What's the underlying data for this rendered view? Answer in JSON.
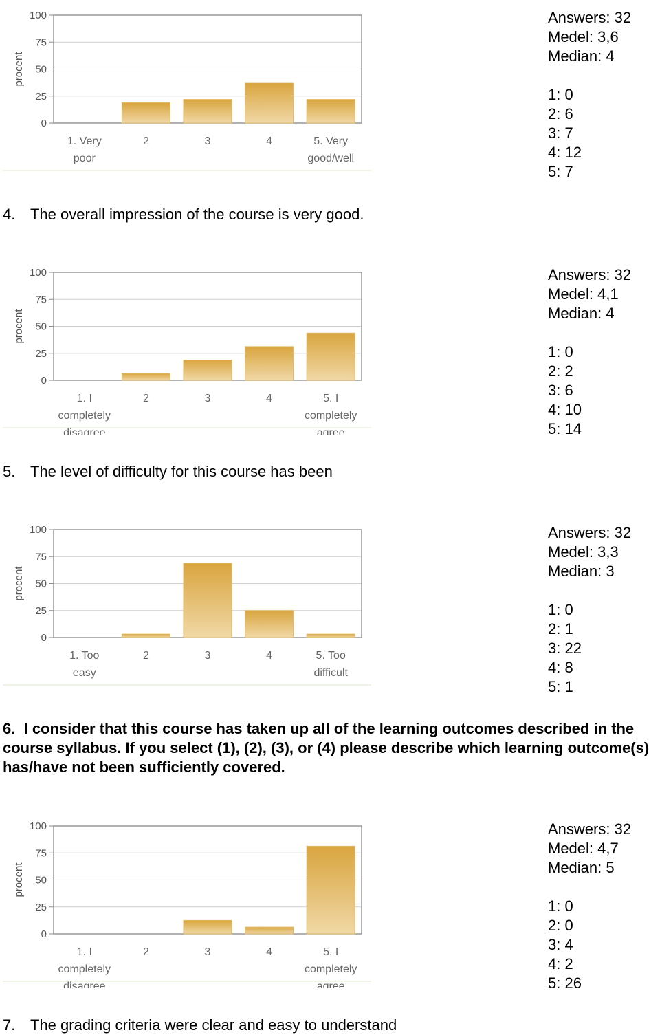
{
  "chart_data": [
    {
      "type": "bar",
      "ylabel": "procent",
      "ylim": [
        0,
        100
      ],
      "yticks": [
        "100",
        "75",
        "50",
        "25",
        "0"
      ],
      "categories": [
        [
          "1. Very",
          "poor"
        ],
        [
          "2"
        ],
        [
          "3"
        ],
        [
          "4"
        ],
        [
          "5. Very",
          "good/well"
        ]
      ],
      "values": [
        0,
        18.8,
        21.9,
        37.5,
        21.9
      ],
      "bar_color": "#e6c27a",
      "stats": {
        "answers": "Answers: 32",
        "medel": "Medel: 3,6",
        "median": "Median: 4",
        "counts": [
          "1: 0",
          "2: 6",
          "3: 7",
          "4: 12",
          "5: 7"
        ]
      }
    },
    {
      "type": "bar",
      "ylabel": "procent",
      "ylim": [
        0,
        100
      ],
      "yticks": [
        "100",
        "75",
        "50",
        "25",
        "0"
      ],
      "categories": [
        [
          "1. I",
          "completely",
          "disagree"
        ],
        [
          "2"
        ],
        [
          "3"
        ],
        [
          "4"
        ],
        [
          "5. I",
          "completely",
          "agree"
        ]
      ],
      "values": [
        0,
        6.3,
        18.8,
        31.3,
        43.8
      ],
      "bar_color": "#e6c27a",
      "stats": {
        "answers": "Answers: 32",
        "medel": "Medel: 4,1",
        "median": "Median: 4",
        "counts": [
          "1: 0",
          "2: 2",
          "3: 6",
          "4: 10",
          "5: 14"
        ]
      }
    },
    {
      "type": "bar",
      "ylabel": "procent",
      "ylim": [
        0,
        100
      ],
      "yticks": [
        "100",
        "75",
        "50",
        "25",
        "0"
      ],
      "categories": [
        [
          "1. Too",
          "easy"
        ],
        [
          "2"
        ],
        [
          "3"
        ],
        [
          "4"
        ],
        [
          "5. Too",
          "difficult"
        ]
      ],
      "values": [
        0,
        3.1,
        68.8,
        25,
        3.1
      ],
      "bar_color": "#e6c27a",
      "stats": {
        "answers": "Answers: 32",
        "medel": "Medel: 3,3",
        "median": "Median: 3",
        "counts": [
          "1: 0",
          "2: 1",
          "3: 22",
          "4: 8",
          "5: 1"
        ]
      }
    },
    {
      "type": "bar",
      "ylabel": "procent",
      "ylim": [
        0,
        100
      ],
      "yticks": [
        "100",
        "75",
        "50",
        "25",
        "0"
      ],
      "categories": [
        [
          "1. I",
          "completely",
          "disagree"
        ],
        [
          "2"
        ],
        [
          "3"
        ],
        [
          "4"
        ],
        [
          "5. I",
          "completely",
          "agree"
        ]
      ],
      "values": [
        0,
        0,
        12.5,
        6.3,
        81.3
      ],
      "bar_color": "#e6c27a",
      "stats": {
        "answers": "Answers: 32",
        "medel": "Medel: 4,7",
        "median": "Median: 5",
        "counts": [
          "1: 0",
          "2: 0",
          "3: 4",
          "4: 2",
          "5: 26"
        ]
      }
    }
  ],
  "questions": [
    {
      "num": "4.",
      "text": "The overall impression of the course is very good."
    },
    {
      "num": "5.",
      "text": "The level of difficulty for this course has been"
    },
    {
      "num": "6.",
      "text": "I consider that this course has taken up all of the learning outcomes described in the course syllabus. If you select (1), (2), (3), or (4) please describe which learning outcome(s) has/have not been sufficiently covered."
    },
    {
      "num": "7.",
      "text": "The grading criteria were clear and easy to understand"
    }
  ]
}
